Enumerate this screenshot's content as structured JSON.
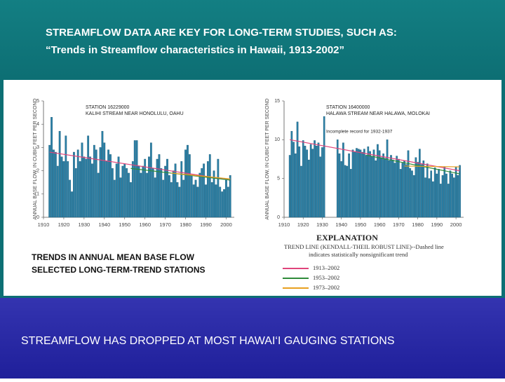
{
  "slide": {
    "heading": "STREAMFLOW DATA ARE KEY FOR LONG-TERM STUDIES, SUCH AS:",
    "subheading": "“Trends in Streamflow characteristics in Hawaii, 1913-2002”",
    "footer": "STREAMFLOW HAS DROPPED AT MOST HAWAI‘I GAUGING STATIONS"
  },
  "figure": {
    "caption_lines": [
      "TRENDS IN ANNUAL MEAN BASE FLOW",
      "SELECTED LONG-TERM-TREND STATIONS"
    ],
    "explanation": {
      "title": "EXPLANATION",
      "description_lines": [
        "TREND LINE (KENDALL-THEIL ROBUST LINE)--Dashed line",
        "indicates statistically nonsignificant trend"
      ],
      "items": [
        {
          "label": "1913–2002",
          "color": "#e0457b"
        },
        {
          "label": "1953–2002",
          "color": "#2e8b3a"
        },
        {
          "label": "1973–2002",
          "color": "#e8a020"
        }
      ]
    }
  },
  "chart_data": [
    {
      "type": "bar",
      "station": "STATION 16229000",
      "stream": "KALIHI STREAM NEAR HONOLULU, OAHU",
      "y_label": "ANNUAL BASE FLOW, IN CUBIC FEET PER SECOND",
      "color": "#2b80a6",
      "x": [
        1913,
        1914,
        1915,
        1916,
        1917,
        1918,
        1919,
        1920,
        1921,
        1922,
        1923,
        1924,
        1925,
        1926,
        1927,
        1928,
        1929,
        1930,
        1931,
        1932,
        1933,
        1934,
        1935,
        1936,
        1937,
        1938,
        1939,
        1940,
        1941,
        1942,
        1943,
        1944,
        1945,
        1946,
        1947,
        1948,
        1949,
        1950,
        1951,
        1952,
        1953,
        1954,
        1955,
        1956,
        1957,
        1958,
        1959,
        1960,
        1961,
        1962,
        1963,
        1964,
        1965,
        1966,
        1967,
        1968,
        1969,
        1970,
        1971,
        1972,
        1973,
        1974,
        1975,
        1976,
        1977,
        1978,
        1979,
        1980,
        1981,
        1982,
        1983,
        1984,
        1985,
        1986,
        1987,
        1988,
        1989,
        1990,
        1991,
        1992,
        1993,
        1994,
        1995,
        1996,
        1997,
        1998,
        1999,
        2000,
        2001,
        2002
      ],
      "values": [
        3.1,
        4.3,
        2.9,
        2.8,
        2.2,
        3.7,
        2.6,
        2.4,
        3.5,
        2.4,
        1.6,
        1.1,
        2.8,
        2.1,
        2.9,
        2.4,
        3.2,
        2.6,
        2.5,
        3.5,
        2.6,
        2.3,
        3.1,
        2.9,
        1.9,
        3.0,
        3.7,
        3.2,
        2.4,
        2.9,
        2.7,
        2.1,
        1.6,
        2.3,
        2.6,
        1.7,
        2.2,
        2.3,
        2.1,
        1.9,
        1.5,
        2.4,
        3.3,
        3.3,
        2.2,
        1.9,
        2.2,
        2.5,
        1.9,
        2.6,
        3.2,
        2.1,
        1.7,
        2.5,
        2.7,
        2.1,
        1.6,
        2.2,
        2.5,
        1.8,
        1.5,
        2.0,
        2.3,
        1.5,
        1.3,
        2.4,
        1.6,
        2.9,
        3.1,
        2.7,
        1.8,
        1.4,
        1.6,
        1.3,
        1.9,
        2.1,
        2.3,
        1.4,
        2.4,
        2.7,
        1.5,
        2.0,
        1.4,
        2.5,
        1.3,
        1.1,
        1.2,
        1.6,
        1.3,
        1.8
      ],
      "trend_lines": [
        {
          "x": [
            1913,
            2002
          ],
          "values": [
            2.8,
            1.6
          ]
        },
        {
          "x": [
            1953,
            2002
          ],
          "values": [
            2.1,
            1.6
          ]
        },
        {
          "x": [
            1973,
            2002
          ],
          "values": [
            1.9,
            1.65
          ]
        }
      ],
      "xlim": [
        1910,
        2004
      ],
      "xticks": [
        1910,
        1920,
        1930,
        1940,
        1950,
        1960,
        1970,
        1980,
        1990,
        2000
      ],
      "ylim": [
        0,
        5
      ],
      "yticks": [
        0,
        1,
        2,
        3,
        4,
        5
      ]
    },
    {
      "type": "bar",
      "station": "STATION 16400000",
      "stream": "HALAWA STREAM NEAR HALAWA, MOLOKAI",
      "annotation": "Incomplete record for 1932-1937",
      "y_label": "ANNUAL BASE FLOW, IN CUBIC FEET PER SECOND",
      "color": "#2b80a6",
      "x": [
        1913,
        1914,
        1915,
        1916,
        1917,
        1918,
        1919,
        1920,
        1921,
        1922,
        1923,
        1924,
        1925,
        1926,
        1927,
        1928,
        1929,
        1930,
        1931,
        1932,
        1933,
        1934,
        1935,
        1936,
        1937,
        1938,
        1939,
        1940,
        1941,
        1942,
        1943,
        1944,
        1945,
        1946,
        1947,
        1948,
        1949,
        1950,
        1951,
        1952,
        1953,
        1954,
        1955,
        1956,
        1957,
        1958,
        1959,
        1960,
        1961,
        1962,
        1963,
        1964,
        1965,
        1966,
        1967,
        1968,
        1969,
        1970,
        1971,
        1972,
        1973,
        1974,
        1975,
        1976,
        1977,
        1978,
        1979,
        1980,
        1981,
        1982,
        1983,
        1984,
        1985,
        1986,
        1987,
        1988,
        1989,
        1990,
        1991,
        1992,
        1993,
        1994,
        1995,
        1996,
        1997,
        1998,
        1999,
        2000,
        2001,
        2002
      ],
      "values": [
        8.0,
        11.1,
        9.7,
        8.2,
        12.3,
        9.1,
        6.6,
        9.9,
        9.2,
        8.7,
        7.4,
        9.4,
        8.8,
        9.9,
        9.2,
        9.6,
        7.8,
        9.0,
        13.0,
        null,
        null,
        null,
        null,
        null,
        null,
        10.0,
        8.2,
        7.2,
        9.6,
        6.7,
        6.6,
        8.2,
        6.2,
        8.7,
        8.4,
        8.9,
        8.8,
        8.7,
        8.4,
        8.8,
        8.0,
        9.1,
        8.5,
        7.8,
        8.7,
        7.3,
        9.4,
        8.6,
        7.7,
        8.2,
        7.6,
        10.0,
        7.3,
        8.0,
        7.4,
        7.0,
        7.9,
        7.5,
        6.2,
        7.0,
        7.3,
        6.8,
        8.6,
        6.3,
        6.0,
        5.4,
        7.7,
        7.1,
        8.8,
        6.8,
        7.3,
        5.1,
        6.9,
        5.0,
        6.0,
        4.6,
        6.4,
        5.6,
        6.2,
        4.3,
        5.4,
        6.5,
        5.6,
        4.3,
        6.0,
        5.6,
        5.1,
        6.5,
        5.4,
        6.7
      ],
      "trend_lines": [
        {
          "x": [
            1913,
            2002
          ],
          "values": [
            10.0,
            6.0
          ]
        },
        {
          "x": [
            1953,
            2002
          ],
          "values": [
            8.0,
            5.6
          ]
        },
        {
          "x": [
            1973,
            2002
          ],
          "values": [
            6.6,
            6.5
          ]
        }
      ],
      "xlim": [
        1910,
        2004
      ],
      "xticks": [
        1910,
        1920,
        1930,
        1940,
        1950,
        1960,
        1970,
        1980,
        1990,
        2000
      ],
      "ylim": [
        0,
        15
      ],
      "yticks": [
        0,
        5,
        10,
        15
      ]
    }
  ]
}
